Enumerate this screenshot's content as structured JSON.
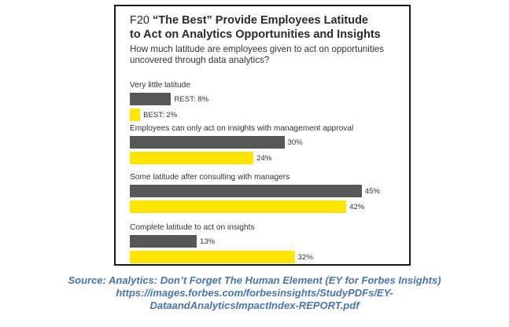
{
  "header": {
    "figure_code": "F20",
    "title_line1": "“The Best” Provide Employees Latitude",
    "title_line2": "to Act on Analytics Opportunities and Insights"
  },
  "question": "How much latitude are employees given to act on opportunities uncovered through data analytics?",
  "chart_data": {
    "type": "bar",
    "orientation": "horizontal",
    "categories": [
      "Very little latitude",
      "Employees can only act on insights with management approval",
      "Some latitude after consulting with managers",
      "Complete latitude to act on insights"
    ],
    "series": [
      {
        "name": "REST",
        "values": [
          8,
          30,
          45,
          13
        ],
        "color": "#575757"
      },
      {
        "name": "BEST",
        "values": [
          2,
          24,
          42,
          32
        ],
        "color": "#ffe600"
      }
    ],
    "data_labels": [
      [
        "REST: 8%",
        "BEST: 2%"
      ],
      [
        "30%",
        "24%"
      ],
      [
        "45%",
        "42%"
      ],
      [
        "13%",
        "32%"
      ]
    ],
    "unit": "%"
  },
  "source": {
    "line1": "Source: Analytics: Don’t Forget The Human Element (EY for Forbes Insights)",
    "line2": "https://images.forbes.com/forbesinsights/StudyPDFs/EY-",
    "line3": "DataandAnalyticsImpactIndex-REPORT.pdf"
  }
}
